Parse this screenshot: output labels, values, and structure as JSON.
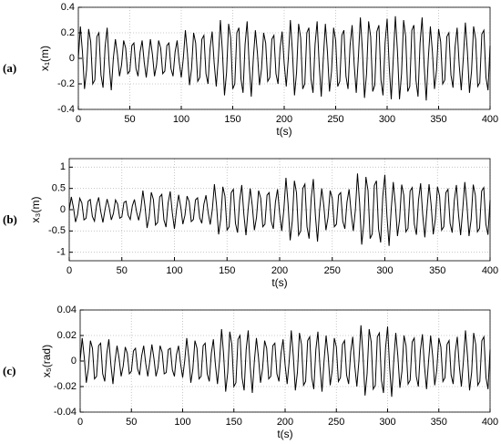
{
  "chart_data": [
    {
      "type": "line",
      "panel_label": "(a)",
      "ylabel": "x₁(m)",
      "xlabel": "t(s)",
      "color": "#000000",
      "grid": true,
      "xlim": [
        0,
        400
      ],
      "xticks": [
        0,
        50,
        100,
        150,
        200,
        250,
        300,
        350,
        400
      ],
      "ylim": [
        -0.4,
        0.4
      ],
      "yticks": [
        -0.4,
        -0.2,
        0,
        0.2,
        0.4
      ],
      "x": [
        0,
        2,
        4,
        6,
        8,
        10,
        12,
        14,
        16,
        18,
        20,
        22,
        24,
        26,
        28,
        30,
        32,
        34,
        36,
        38,
        40,
        42,
        44,
        46,
        48,
        50,
        52,
        54,
        56,
        58,
        60,
        62,
        64,
        66,
        68,
        70,
        72,
        74,
        76,
        78,
        80,
        82,
        84,
        86,
        88,
        90,
        92,
        94,
        96,
        98,
        100,
        102,
        104,
        106,
        108,
        110,
        112,
        114,
        116,
        118,
        120,
        122,
        124,
        126,
        128,
        130,
        132,
        134,
        136,
        138,
        140,
        142,
        144,
        146,
        148,
        150,
        152,
        154,
        156,
        158,
        160,
        162,
        164,
        166,
        168,
        170,
        172,
        174,
        176,
        178,
        180,
        182,
        184,
        186,
        188,
        190,
        192,
        194,
        196,
        198,
        200,
        202,
        204,
        206,
        208,
        210,
        212,
        214,
        216,
        218,
        220,
        222,
        224,
        226,
        228,
        230,
        232,
        234,
        236,
        238,
        240,
        242,
        244,
        246,
        248,
        250,
        252,
        254,
        256,
        258,
        260,
        262,
        264,
        266,
        268,
        270,
        272,
        274,
        276,
        278,
        280,
        282,
        284,
        286,
        288,
        290,
        292,
        294,
        296,
        298,
        300,
        302,
        304,
        306,
        308,
        310,
        312,
        314,
        316,
        318,
        320,
        322,
        324,
        326,
        328,
        330,
        332,
        334,
        336,
        338,
        340,
        342,
        344,
        346,
        348,
        350,
        352,
        354,
        356,
        358,
        360,
        362,
        364,
        366,
        368,
        370,
        372,
        374,
        376,
        378,
        380,
        382,
        384,
        386,
        388,
        390,
        392,
        394,
        396,
        398,
        400
      ],
      "values": [
        0,
        0.25,
        0.05,
        -0.24,
        -0.09,
        0.23,
        0.13,
        -0.2,
        -0.17,
        0.17,
        0.2,
        -0.13,
        -0.23,
        0.09,
        0.24,
        -0.05,
        -0.25,
        0,
        0.15,
        0.03,
        -0.14,
        -0.05,
        0.14,
        0.08,
        -0.12,
        -0.1,
        0.1,
        0.12,
        -0.08,
        -0.14,
        0.05,
        0.14,
        -0.03,
        -0.15,
        0,
        0.15,
        0.03,
        -0.14,
        -0.05,
        0.14,
        0.08,
        -0.12,
        -0.1,
        0.1,
        0.12,
        -0.08,
        -0.14,
        0.05,
        0.14,
        -0.03,
        -0.15,
        0,
        0.22,
        0.04,
        -0.21,
        -0.08,
        0.2,
        0.12,
        -0.18,
        -0.15,
        0.15,
        0.18,
        -0.12,
        -0.2,
        0.08,
        0.21,
        -0.04,
        -0.22,
        0,
        0.3,
        0.05,
        -0.29,
        -0.11,
        0.27,
        0.16,
        -0.24,
        -0.2,
        0.2,
        0.24,
        -0.16,
        -0.27,
        0.11,
        0.29,
        -0.05,
        -0.3,
        0,
        0.22,
        0.04,
        -0.21,
        -0.08,
        0.2,
        0.12,
        -0.18,
        -0.15,
        0.15,
        0.18,
        -0.12,
        -0.2,
        0.08,
        0.21,
        -0.04,
        -0.22,
        0,
        0.3,
        0.05,
        -0.29,
        -0.11,
        0.27,
        0.16,
        -0.24,
        -0.2,
        0.2,
        0.24,
        -0.16,
        -0.27,
        0.11,
        0.29,
        -0.05,
        -0.3,
        0,
        0.27,
        0.05,
        -0.26,
        -0.1,
        0.24,
        0.14,
        -0.22,
        -0.18,
        0.18,
        0.22,
        -0.14,
        -0.24,
        0.1,
        0.26,
        -0.05,
        -0.27,
        0,
        0.32,
        0.06,
        -0.31,
        -0.12,
        0.29,
        0.17,
        -0.26,
        -0.21,
        0.21,
        0.26,
        -0.17,
        -0.29,
        0.12,
        0.31,
        -0.06,
        -0.32,
        0,
        0.33,
        0.06,
        -0.32,
        -0.12,
        0.3,
        0.17,
        -0.26,
        -0.22,
        0.22,
        0.26,
        -0.17,
        -0.3,
        0.12,
        0.32,
        -0.06,
        -0.33,
        0,
        0.25,
        0.05,
        -0.24,
        -0.09,
        0.23,
        0.13,
        -0.2,
        -0.17,
        0.17,
        0.2,
        -0.13,
        -0.23,
        0.09,
        0.24,
        -0.05,
        -0.25,
        0,
        0.28,
        0.05,
        -0.27,
        -0.1,
        0.25,
        0.15,
        -0.22,
        -0.19,
        0.19,
        0.22,
        -0.15,
        -0.25,
        0.1
      ]
    },
    {
      "type": "line",
      "panel_label": "(b)",
      "ylabel": "x₃(m)",
      "xlabel": "t(s)",
      "color": "#000000",
      "grid": true,
      "xlim": [
        0,
        400
      ],
      "xticks": [
        0,
        50,
        100,
        150,
        200,
        250,
        300,
        350,
        400
      ],
      "ylim": [
        -1.2,
        1.2
      ],
      "yticks": [
        -1,
        -0.5,
        0,
        0.5,
        1
      ],
      "x": [
        0,
        2,
        4,
        6,
        8,
        10,
        12,
        14,
        16,
        18,
        20,
        22,
        24,
        26,
        28,
        30,
        32,
        34,
        36,
        38,
        40,
        42,
        44,
        46,
        48,
        50,
        52,
        54,
        56,
        58,
        60,
        62,
        64,
        66,
        68,
        70,
        72,
        74,
        76,
        78,
        80,
        82,
        84,
        86,
        88,
        90,
        92,
        94,
        96,
        98,
        100,
        102,
        104,
        106,
        108,
        110,
        112,
        114,
        116,
        118,
        120,
        122,
        124,
        126,
        128,
        130,
        132,
        134,
        136,
        138,
        140,
        142,
        144,
        146,
        148,
        150,
        152,
        154,
        156,
        158,
        160,
        162,
        164,
        166,
        168,
        170,
        172,
        174,
        176,
        178,
        180,
        182,
        184,
        186,
        188,
        190,
        192,
        194,
        196,
        198,
        200,
        202,
        204,
        206,
        208,
        210,
        212,
        214,
        216,
        218,
        220,
        222,
        224,
        226,
        228,
        230,
        232,
        234,
        236,
        238,
        240,
        242,
        244,
        246,
        248,
        250,
        252,
        254,
        256,
        258,
        260,
        262,
        264,
        266,
        268,
        270,
        272,
        274,
        276,
        278,
        280,
        282,
        284,
        286,
        288,
        290,
        292,
        294,
        296,
        298,
        300,
        302,
        304,
        306,
        308,
        310,
        312,
        314,
        316,
        318,
        320,
        322,
        324,
        326,
        328,
        330,
        332,
        334,
        336,
        338,
        340,
        342,
        344,
        346,
        348,
        350,
        352,
        354,
        356,
        358,
        360,
        362,
        364,
        366,
        368,
        370,
        372,
        374,
        376,
        378,
        380,
        382,
        384,
        386,
        388,
        390,
        392,
        394,
        396,
        398,
        400
      ],
      "values": [
        0,
        0.3,
        0.05,
        -0.29,
        -0.11,
        0.27,
        0.16,
        -0.24,
        -0.2,
        0.2,
        0.24,
        -0.16,
        -0.27,
        0.11,
        0.29,
        -0.05,
        -0.3,
        0,
        0.25,
        0.05,
        -0.24,
        -0.09,
        0.23,
        0.13,
        -0.2,
        -0.17,
        0.17,
        0.2,
        -0.13,
        -0.23,
        0.09,
        0.24,
        -0.05,
        -0.25,
        0,
        0.45,
        0.08,
        -0.43,
        -0.16,
        0.41,
        0.24,
        -0.36,
        -0.3,
        0.3,
        0.36,
        -0.24,
        -0.41,
        0.16,
        0.43,
        -0.08,
        -0.45,
        0,
        0.35,
        0.06,
        -0.34,
        -0.13,
        0.32,
        0.19,
        -0.28,
        -0.23,
        0.23,
        0.28,
        -0.19,
        -0.32,
        0.13,
        0.34,
        -0.06,
        -0.35,
        0,
        0.6,
        0.11,
        -0.58,
        -0.22,
        0.54,
        0.32,
        -0.48,
        -0.4,
        0.4,
        0.48,
        -0.32,
        -0.54,
        0.22,
        0.58,
        -0.11,
        -0.6,
        0,
        0.5,
        0.09,
        -0.48,
        -0.18,
        0.45,
        0.27,
        -0.4,
        -0.34,
        0.34,
        0.4,
        -0.27,
        -0.45,
        0.18,
        0.48,
        -0.09,
        -0.5,
        0,
        0.75,
        0.14,
        -0.72,
        -0.27,
        0.68,
        0.4,
        -0.6,
        -0.5,
        0.5,
        0.6,
        -0.4,
        -0.68,
        0.27,
        0.72,
        -0.14,
        -0.75,
        0,
        0.5,
        0.09,
        -0.48,
        -0.18,
        0.45,
        0.27,
        -0.4,
        -0.34,
        0.34,
        0.4,
        -0.27,
        -0.45,
        0.18,
        0.48,
        -0.09,
        -0.5,
        0,
        0.85,
        0.15,
        -0.82,
        -0.31,
        0.77,
        0.45,
        -0.68,
        -0.57,
        0.57,
        0.68,
        -0.45,
        -0.77,
        0.31,
        0.82,
        -0.15,
        -0.85,
        0,
        0.65,
        0.12,
        -0.62,
        -0.23,
        0.59,
        0.34,
        -0.52,
        -0.44,
        0.44,
        0.52,
        -0.34,
        -0.59,
        0.23,
        0.62,
        -0.12,
        -0.65,
        0,
        0.6,
        0.11,
        -0.58,
        -0.22,
        0.54,
        0.32,
        -0.48,
        -0.4,
        0.4,
        0.48,
        -0.32,
        -0.54,
        0.22,
        0.58,
        -0.11,
        -0.6,
        0,
        0.65,
        0.12,
        -0.62,
        -0.23,
        0.59,
        0.34,
        -0.52,
        -0.44,
        0.44,
        0.52,
        -0.34,
        -0.59,
        0.23
      ]
    },
    {
      "type": "line",
      "panel_label": "(c)",
      "ylabel": "x₅(rad)",
      "xlabel": "t(s)",
      "color": "#000000",
      "grid": true,
      "xlim": [
        0,
        400
      ],
      "xticks": [
        0,
        50,
        100,
        150,
        200,
        250,
        300,
        350,
        400
      ],
      "ylim": [
        -0.04,
        0.04
      ],
      "yticks": [
        -0.04,
        -0.02,
        0,
        0.02,
        0.04
      ],
      "x": [
        0,
        2,
        4,
        6,
        8,
        10,
        12,
        14,
        16,
        18,
        20,
        22,
        24,
        26,
        28,
        30,
        32,
        34,
        36,
        38,
        40,
        42,
        44,
        46,
        48,
        50,
        52,
        54,
        56,
        58,
        60,
        62,
        64,
        66,
        68,
        70,
        72,
        74,
        76,
        78,
        80,
        82,
        84,
        86,
        88,
        90,
        92,
        94,
        96,
        98,
        100,
        102,
        104,
        106,
        108,
        110,
        112,
        114,
        116,
        118,
        120,
        122,
        124,
        126,
        128,
        130,
        132,
        134,
        136,
        138,
        140,
        142,
        144,
        146,
        148,
        150,
        152,
        154,
        156,
        158,
        160,
        162,
        164,
        166,
        168,
        170,
        172,
        174,
        176,
        178,
        180,
        182,
        184,
        186,
        188,
        190,
        192,
        194,
        196,
        198,
        200,
        202,
        204,
        206,
        208,
        210,
        212,
        214,
        216,
        218,
        220,
        222,
        224,
        226,
        228,
        230,
        232,
        234,
        236,
        238,
        240,
        242,
        244,
        246,
        248,
        250,
        252,
        254,
        256,
        258,
        260,
        262,
        264,
        266,
        268,
        270,
        272,
        274,
        276,
        278,
        280,
        282,
        284,
        286,
        288,
        290,
        292,
        294,
        296,
        298,
        300,
        302,
        304,
        306,
        308,
        310,
        312,
        314,
        316,
        318,
        320,
        322,
        324,
        326,
        328,
        330,
        332,
        334,
        336,
        338,
        340,
        342,
        344,
        346,
        348,
        350,
        352,
        354,
        356,
        358,
        360,
        362,
        364,
        366,
        368,
        370,
        372,
        374,
        376,
        378,
        380,
        382,
        384,
        386,
        388,
        390,
        392,
        394,
        396,
        398,
        400
      ],
      "values": [
        0,
        0.018,
        0.003,
        -0.017,
        -0.006,
        0.016,
        0.01,
        -0.014,
        -0.012,
        0.012,
        0.014,
        -0.01,
        -0.016,
        0.006,
        0.017,
        -0.003,
        -0.018,
        0,
        0.012,
        0.002,
        -0.012,
        -0.004,
        0.011,
        0.006,
        -0.01,
        -0.008,
        0.008,
        0.01,
        -0.006,
        -0.011,
        0.004,
        0.012,
        -0.002,
        -0.012,
        0,
        0.013,
        0.002,
        -0.012,
        -0.005,
        0.012,
        0.007,
        -0.01,
        -0.009,
        0.009,
        0.01,
        -0.007,
        -0.012,
        0.005,
        0.012,
        -0.002,
        -0.013,
        0,
        0.018,
        0.003,
        -0.017,
        -0.006,
        0.016,
        0.01,
        -0.014,
        -0.012,
        0.012,
        0.014,
        -0.01,
        -0.016,
        0.006,
        0.017,
        -0.003,
        -0.018,
        0,
        0.025,
        0.005,
        -0.024,
        -0.009,
        0.023,
        0.013,
        -0.02,
        -0.017,
        0.017,
        0.02,
        -0.013,
        -0.023,
        0.009,
        0.024,
        -0.005,
        -0.025,
        0,
        0.018,
        0.003,
        -0.017,
        -0.006,
        0.016,
        0.01,
        -0.014,
        -0.012,
        0.012,
        0.014,
        -0.01,
        -0.016,
        0.006,
        0.017,
        -0.003,
        -0.018,
        0,
        0.024,
        0.004,
        -0.023,
        -0.009,
        0.022,
        0.013,
        -0.019,
        -0.016,
        0.016,
        0.019,
        -0.013,
        -0.022,
        0.009,
        0.023,
        -0.004,
        -0.024,
        0,
        0.02,
        0.004,
        -0.019,
        -0.007,
        0.018,
        0.011,
        -0.016,
        -0.013,
        0.013,
        0.016,
        -0.011,
        -0.018,
        0.007,
        0.019,
        -0.004,
        -0.02,
        0,
        0.028,
        0.005,
        -0.027,
        -0.01,
        0.025,
        0.015,
        -0.022,
        -0.019,
        0.019,
        0.022,
        -0.015,
        -0.025,
        0.01,
        0.027,
        -0.005,
        -0.028,
        0,
        0.022,
        0.004,
        -0.021,
        -0.008,
        0.02,
        0.012,
        -0.018,
        -0.015,
        0.015,
        0.018,
        -0.012,
        -0.02,
        0.008,
        0.021,
        -0.004,
        -0.022,
        0,
        0.02,
        0.004,
        -0.019,
        -0.007,
        0.018,
        0.011,
        -0.016,
        -0.013,
        0.013,
        0.016,
        -0.011,
        -0.018,
        0.007,
        0.019,
        -0.004,
        -0.02,
        0,
        0.024,
        0.004,
        -0.023,
        -0.009,
        0.022,
        0.013,
        -0.019,
        -0.016,
        0.016,
        0.019,
        -0.013,
        -0.022,
        0.009
      ]
    }
  ]
}
